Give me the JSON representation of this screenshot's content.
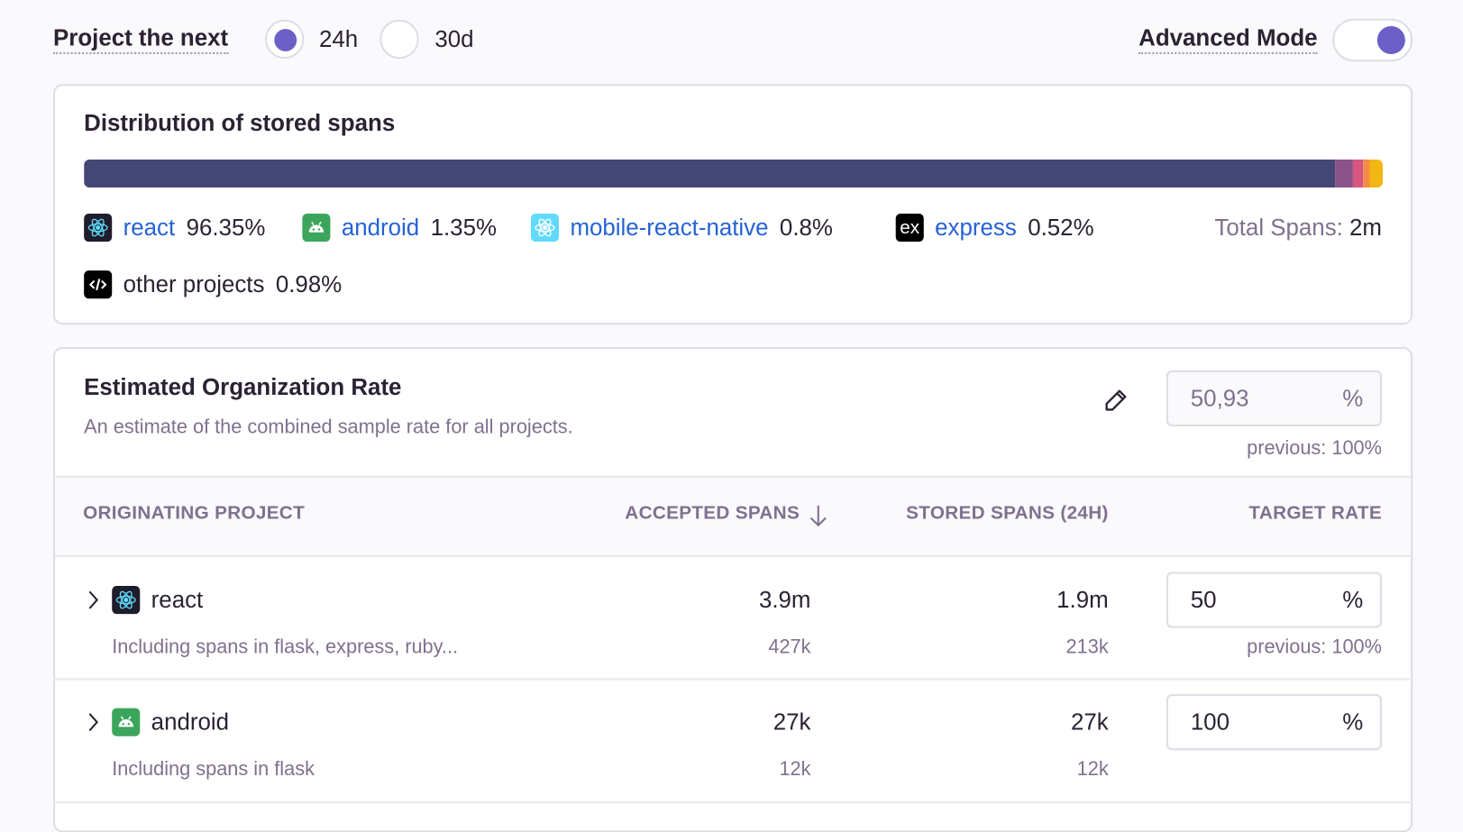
{
  "header": {
    "project_label": "Project the next",
    "options": [
      {
        "label": "24h",
        "selected": true
      },
      {
        "label": "30d",
        "selected": false
      }
    ],
    "advanced_mode_label": "Advanced Mode",
    "advanced_mode_on": true
  },
  "distribution": {
    "title": "Distribution of stored spans",
    "segments": [
      {
        "project": "react",
        "percent": 96.35,
        "color": "#444674"
      },
      {
        "project": "android",
        "percent": 1.35,
        "color": "#895289"
      },
      {
        "project": "mobile-react-native",
        "percent": 0.8,
        "color": "#d6567f"
      },
      {
        "project": "express",
        "percent": 0.52,
        "color": "#f58c46"
      },
      {
        "project": "other projects",
        "percent": 0.98,
        "color": "#f2b712"
      }
    ],
    "legend": [
      {
        "name": "react",
        "value": "96.35%",
        "icon": "react-icon"
      },
      {
        "name": "android",
        "value": "1.35%",
        "icon": "android-icon"
      },
      {
        "name": "mobile-react-native",
        "value": "0.8%",
        "icon": "react-native-icon"
      },
      {
        "name": "express",
        "value": "0.52%",
        "icon": "express-icon"
      },
      {
        "name": "other projects",
        "value": "0.98%",
        "icon": "code-icon"
      }
    ],
    "total_label": "Total Spans:",
    "total_value": "2m"
  },
  "org_rate": {
    "title": "Estimated Organization Rate",
    "description": "An estimate of the combined sample rate for all projects.",
    "value": "50,93",
    "unit": "%",
    "previous": "previous: 100%"
  },
  "table": {
    "columns": [
      "ORIGINATING PROJECT",
      "ACCEPTED SPANS",
      "STORED SPANS (24H)",
      "TARGET RATE"
    ],
    "rows": [
      {
        "name": "react",
        "icon": "react-icon",
        "subtitle": "Including spans in flask, express, ruby...",
        "accepted": "3.9m",
        "accepted_sub": "427k",
        "stored": "1.9m",
        "stored_sub": "213k",
        "rate": "50",
        "unit": "%",
        "previous": "previous: 100%"
      },
      {
        "name": "android",
        "icon": "android-icon",
        "subtitle": "Including spans in flask",
        "accepted": "27k",
        "accepted_sub": "12k",
        "stored": "27k",
        "stored_sub": "12k",
        "rate": "100",
        "unit": "%",
        "previous": ""
      }
    ]
  }
}
